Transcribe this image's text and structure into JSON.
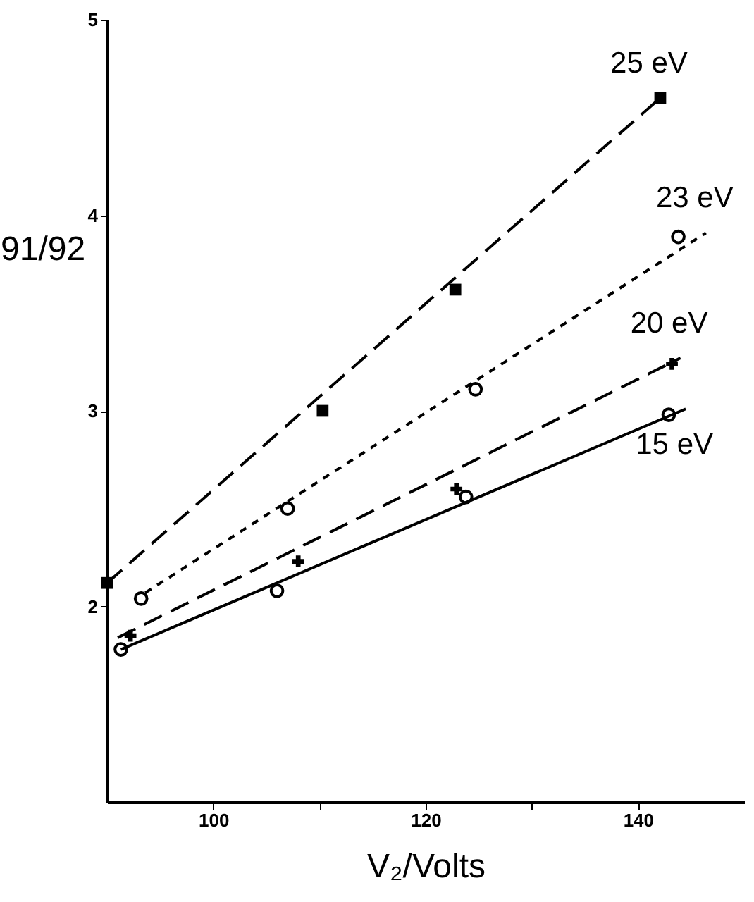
{
  "chart_data": {
    "type": "scatter",
    "xlabel": "V₂/Volts",
    "ylabel": "91/92",
    "xlim": [
      90,
      150
    ],
    "ylim": [
      1,
      5
    ],
    "xticks": [
      100,
      {
        "value": 110,
        "label": null
      },
      120,
      {
        "value": 130,
        "label": null
      },
      140
    ],
    "yticks": [
      2,
      3,
      4,
      5
    ],
    "series": [
      {
        "type": "line",
        "name": "25 eV",
        "color": "#000000",
        "line_style": "dashed",
        "marker": "none",
        "x": [
          90,
          142.1
        ],
        "values": [
          2.12,
          4.6
        ]
      },
      {
        "type": "line",
        "name": "23 eV",
        "color": "#000000",
        "line_style": "dotted",
        "marker": "none",
        "x": [
          93.6,
          146.4
        ],
        "values": [
          2.07,
          3.91
        ]
      },
      {
        "type": "line",
        "name": "20 eV",
        "color": "#000000",
        "line_style": "dashed",
        "marker": "none",
        "x": [
          91,
          144
        ],
        "values": [
          1.84,
          3.27
        ]
      },
      {
        "type": "line",
        "name": "15 eV",
        "color": "#000000",
        "line_style": "solid",
        "marker": "none",
        "x": [
          91.3,
          144.5
        ],
        "values": [
          1.78,
          3.01
        ]
      },
      {
        "color": "#000000",
        "marker": "square",
        "x": [
          90,
          110.3,
          122.8,
          142.1
        ],
        "values": [
          2.12,
          3.0,
          3.62,
          4.6
        ]
      },
      {
        "color": "#000000",
        "marker": "circle",
        "x": [
          93.2,
          107,
          124.7,
          143.8
        ],
        "values": [
          2.04,
          2.5,
          3.11,
          3.89
        ]
      },
      {
        "color": "#000000",
        "marker": "cross",
        "x": [
          92.2,
          108,
          122.9,
          143.2
        ],
        "values": [
          1.85,
          2.23,
          2.6,
          3.24
        ]
      },
      {
        "color": "#000000",
        "marker": "circle",
        "x": [
          91.3,
          106,
          123.8,
          142.9
        ],
        "values": [
          1.78,
          2.08,
          2.56,
          2.98
        ]
      }
    ]
  }
}
